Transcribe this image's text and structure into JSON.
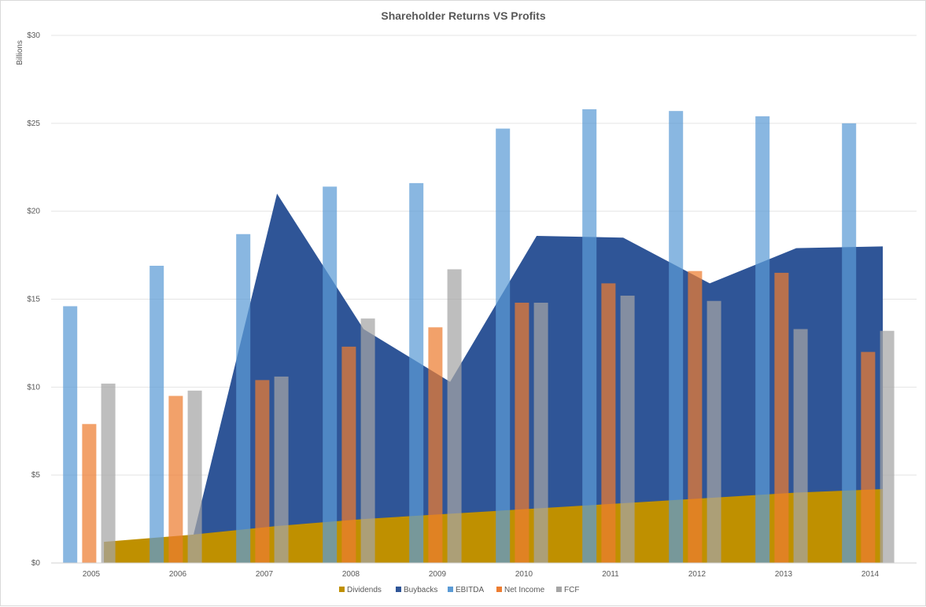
{
  "chart_data": {
    "type": "bar",
    "title": "Shareholder Returns VS Profits",
    "ylabel": "Billions",
    "xlabel": "",
    "ylim": [
      0,
      30
    ],
    "yticks": [
      0,
      5,
      10,
      15,
      20,
      25,
      30
    ],
    "ytick_labels": [
      "$0",
      "$5",
      "$10",
      "$15",
      "$20",
      "$25",
      "$30"
    ],
    "categories": [
      "2005",
      "2006",
      "2007",
      "2008",
      "2009",
      "2010",
      "2011",
      "2012",
      "2013",
      "2014"
    ],
    "grid": true,
    "legend_position": "bottom",
    "areas": [
      {
        "name": "Buybacks",
        "color": "#2F5597",
        "values": [
          0.7,
          0.9,
          21.0,
          13.3,
          10.3,
          18.6,
          18.5,
          15.9,
          17.9,
          18.0
        ]
      },
      {
        "name": "Dividends",
        "color": "#BF9000",
        "values": [
          1.2,
          1.6,
          2.1,
          2.5,
          2.8,
          3.1,
          3.4,
          3.7,
          4.0,
          4.2
        ]
      }
    ],
    "series": [
      {
        "name": "EBITDA",
        "color": "#5B9BD5",
        "values": [
          14.6,
          16.9,
          18.7,
          21.4,
          21.6,
          24.7,
          25.8,
          25.7,
          25.4,
          25.0
        ]
      },
      {
        "name": "Net Income",
        "color": "#ED7D31",
        "values": [
          7.9,
          9.5,
          10.4,
          12.3,
          13.4,
          14.8,
          15.9,
          16.6,
          16.5,
          12.0
        ]
      },
      {
        "name": "FCF",
        "color": "#A5A5A5",
        "values": [
          10.2,
          9.8,
          10.6,
          13.9,
          16.7,
          14.8,
          15.2,
          14.9,
          13.3,
          13.2
        ]
      }
    ],
    "legend": [
      {
        "name": "Dividends",
        "color": "#BF9000"
      },
      {
        "name": "Buybacks",
        "color": "#2F5597"
      },
      {
        "name": "EBITDA",
        "color": "#5B9BD5"
      },
      {
        "name": "Net Income",
        "color": "#ED7D31"
      },
      {
        "name": "FCF",
        "color": "#A5A5A5"
      }
    ]
  }
}
